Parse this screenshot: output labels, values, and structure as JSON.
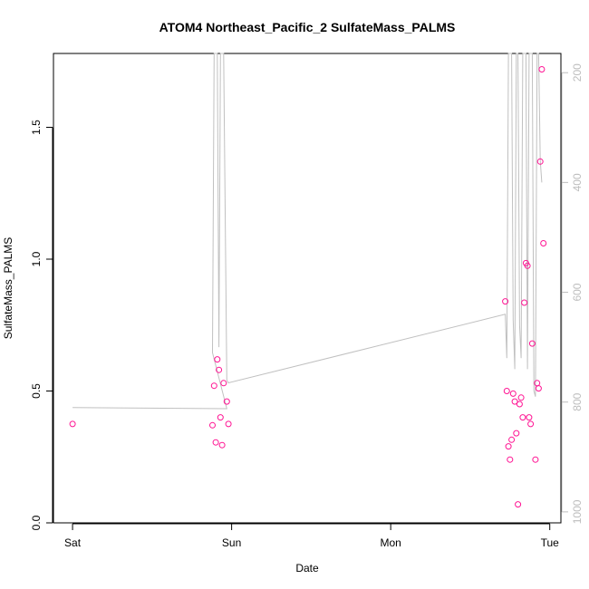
{
  "chart_data": {
    "type": "scatter",
    "title": "ATOM4 Northeast_Pacific_2 SulfateMass_PALMS",
    "xlabel": "Date",
    "ylabel": "SulfateMass_PALMS",
    "x_unit": "days since Sat 00:00",
    "xlim": [
      -0.12,
      3.07
    ],
    "ylim": [
      0,
      1.78
    ],
    "x_ticks": [
      {
        "value": 0,
        "label": "Sat"
      },
      {
        "value": 1,
        "label": "Sun"
      },
      {
        "value": 2,
        "label": "Mon"
      },
      {
        "value": 3,
        "label": "Tue"
      }
    ],
    "y_ticks": [
      {
        "value": 0.0,
        "label": "0.0"
      },
      {
        "value": 0.5,
        "label": "0.5"
      },
      {
        "value": 1.0,
        "label": "1.0"
      },
      {
        "value": 1.5,
        "label": "1.5"
      }
    ],
    "y2_ticks": [
      {
        "value": 200,
        "label": "200"
      },
      {
        "value": 400,
        "label": "400"
      },
      {
        "value": 600,
        "label": "600"
      },
      {
        "value": 800,
        "label": "800"
      },
      {
        "value": 1000,
        "label": "1000"
      }
    ],
    "y2lim_reversed": [
      165,
      1020
    ],
    "points_color": "#ff1493",
    "line_color": "#c0c0c0",
    "series": [
      {
        "values": [
          [
            0.0,
            0.375
          ],
          [
            0.88,
            0.37
          ],
          [
            0.89,
            0.52
          ],
          [
            0.9,
            0.305
          ],
          [
            0.91,
            0.62
          ],
          [
            0.92,
            0.58
          ],
          [
            0.93,
            0.4
          ],
          [
            0.94,
            0.295
          ],
          [
            0.95,
            0.53
          ],
          [
            0.97,
            0.46
          ],
          [
            0.98,
            0.375
          ],
          [
            2.72,
            0.84
          ],
          [
            2.73,
            0.5
          ],
          [
            2.74,
            0.29
          ],
          [
            2.75,
            0.24
          ],
          [
            2.76,
            0.315
          ],
          [
            2.77,
            0.49
          ],
          [
            2.78,
            0.46
          ],
          [
            2.79,
            0.34
          ],
          [
            2.8,
            0.07
          ],
          [
            2.81,
            0.45
          ],
          [
            2.82,
            0.475
          ],
          [
            2.83,
            0.4
          ],
          [
            2.84,
            0.835
          ],
          [
            2.85,
            0.985
          ],
          [
            2.86,
            0.975
          ],
          [
            2.87,
            0.4
          ],
          [
            2.88,
            0.375
          ],
          [
            2.89,
            0.68
          ],
          [
            2.91,
            0.24
          ],
          [
            2.92,
            0.53
          ],
          [
            2.93,
            0.51
          ],
          [
            2.94,
            1.37
          ],
          [
            2.95,
            1.72
          ],
          [
            2.96,
            1.06
          ]
        ]
      },
      {
        "axis": "right",
        "values": [
          [
            0.0,
            810
          ],
          [
            0.97,
            812
          ],
          [
            0.88,
            710
          ],
          [
            0.89,
            60
          ],
          [
            0.9,
            40
          ],
          [
            0.91,
            60
          ],
          [
            0.92,
            700
          ],
          [
            0.93,
            60
          ],
          [
            0.95,
            50
          ],
          [
            0.97,
            760
          ],
          [
            0.98,
            765
          ],
          [
            2.72,
            640
          ],
          [
            2.73,
            720
          ],
          [
            2.74,
            60
          ],
          [
            2.75,
            80
          ],
          [
            2.76,
            40
          ],
          [
            2.77,
            650
          ],
          [
            2.78,
            740
          ],
          [
            2.79,
            60
          ],
          [
            2.8,
            50
          ],
          [
            2.81,
            660
          ],
          [
            2.82,
            720
          ],
          [
            2.83,
            70
          ],
          [
            2.84,
            60
          ],
          [
            2.85,
            50
          ],
          [
            2.86,
            740
          ],
          [
            2.87,
            60
          ],
          [
            2.88,
            50
          ],
          [
            2.89,
            40
          ],
          [
            2.9,
            780
          ],
          [
            2.91,
            790
          ],
          [
            2.92,
            70
          ],
          [
            2.93,
            80
          ],
          [
            2.94,
            360
          ],
          [
            2.95,
            400
          ]
        ]
      }
    ]
  }
}
